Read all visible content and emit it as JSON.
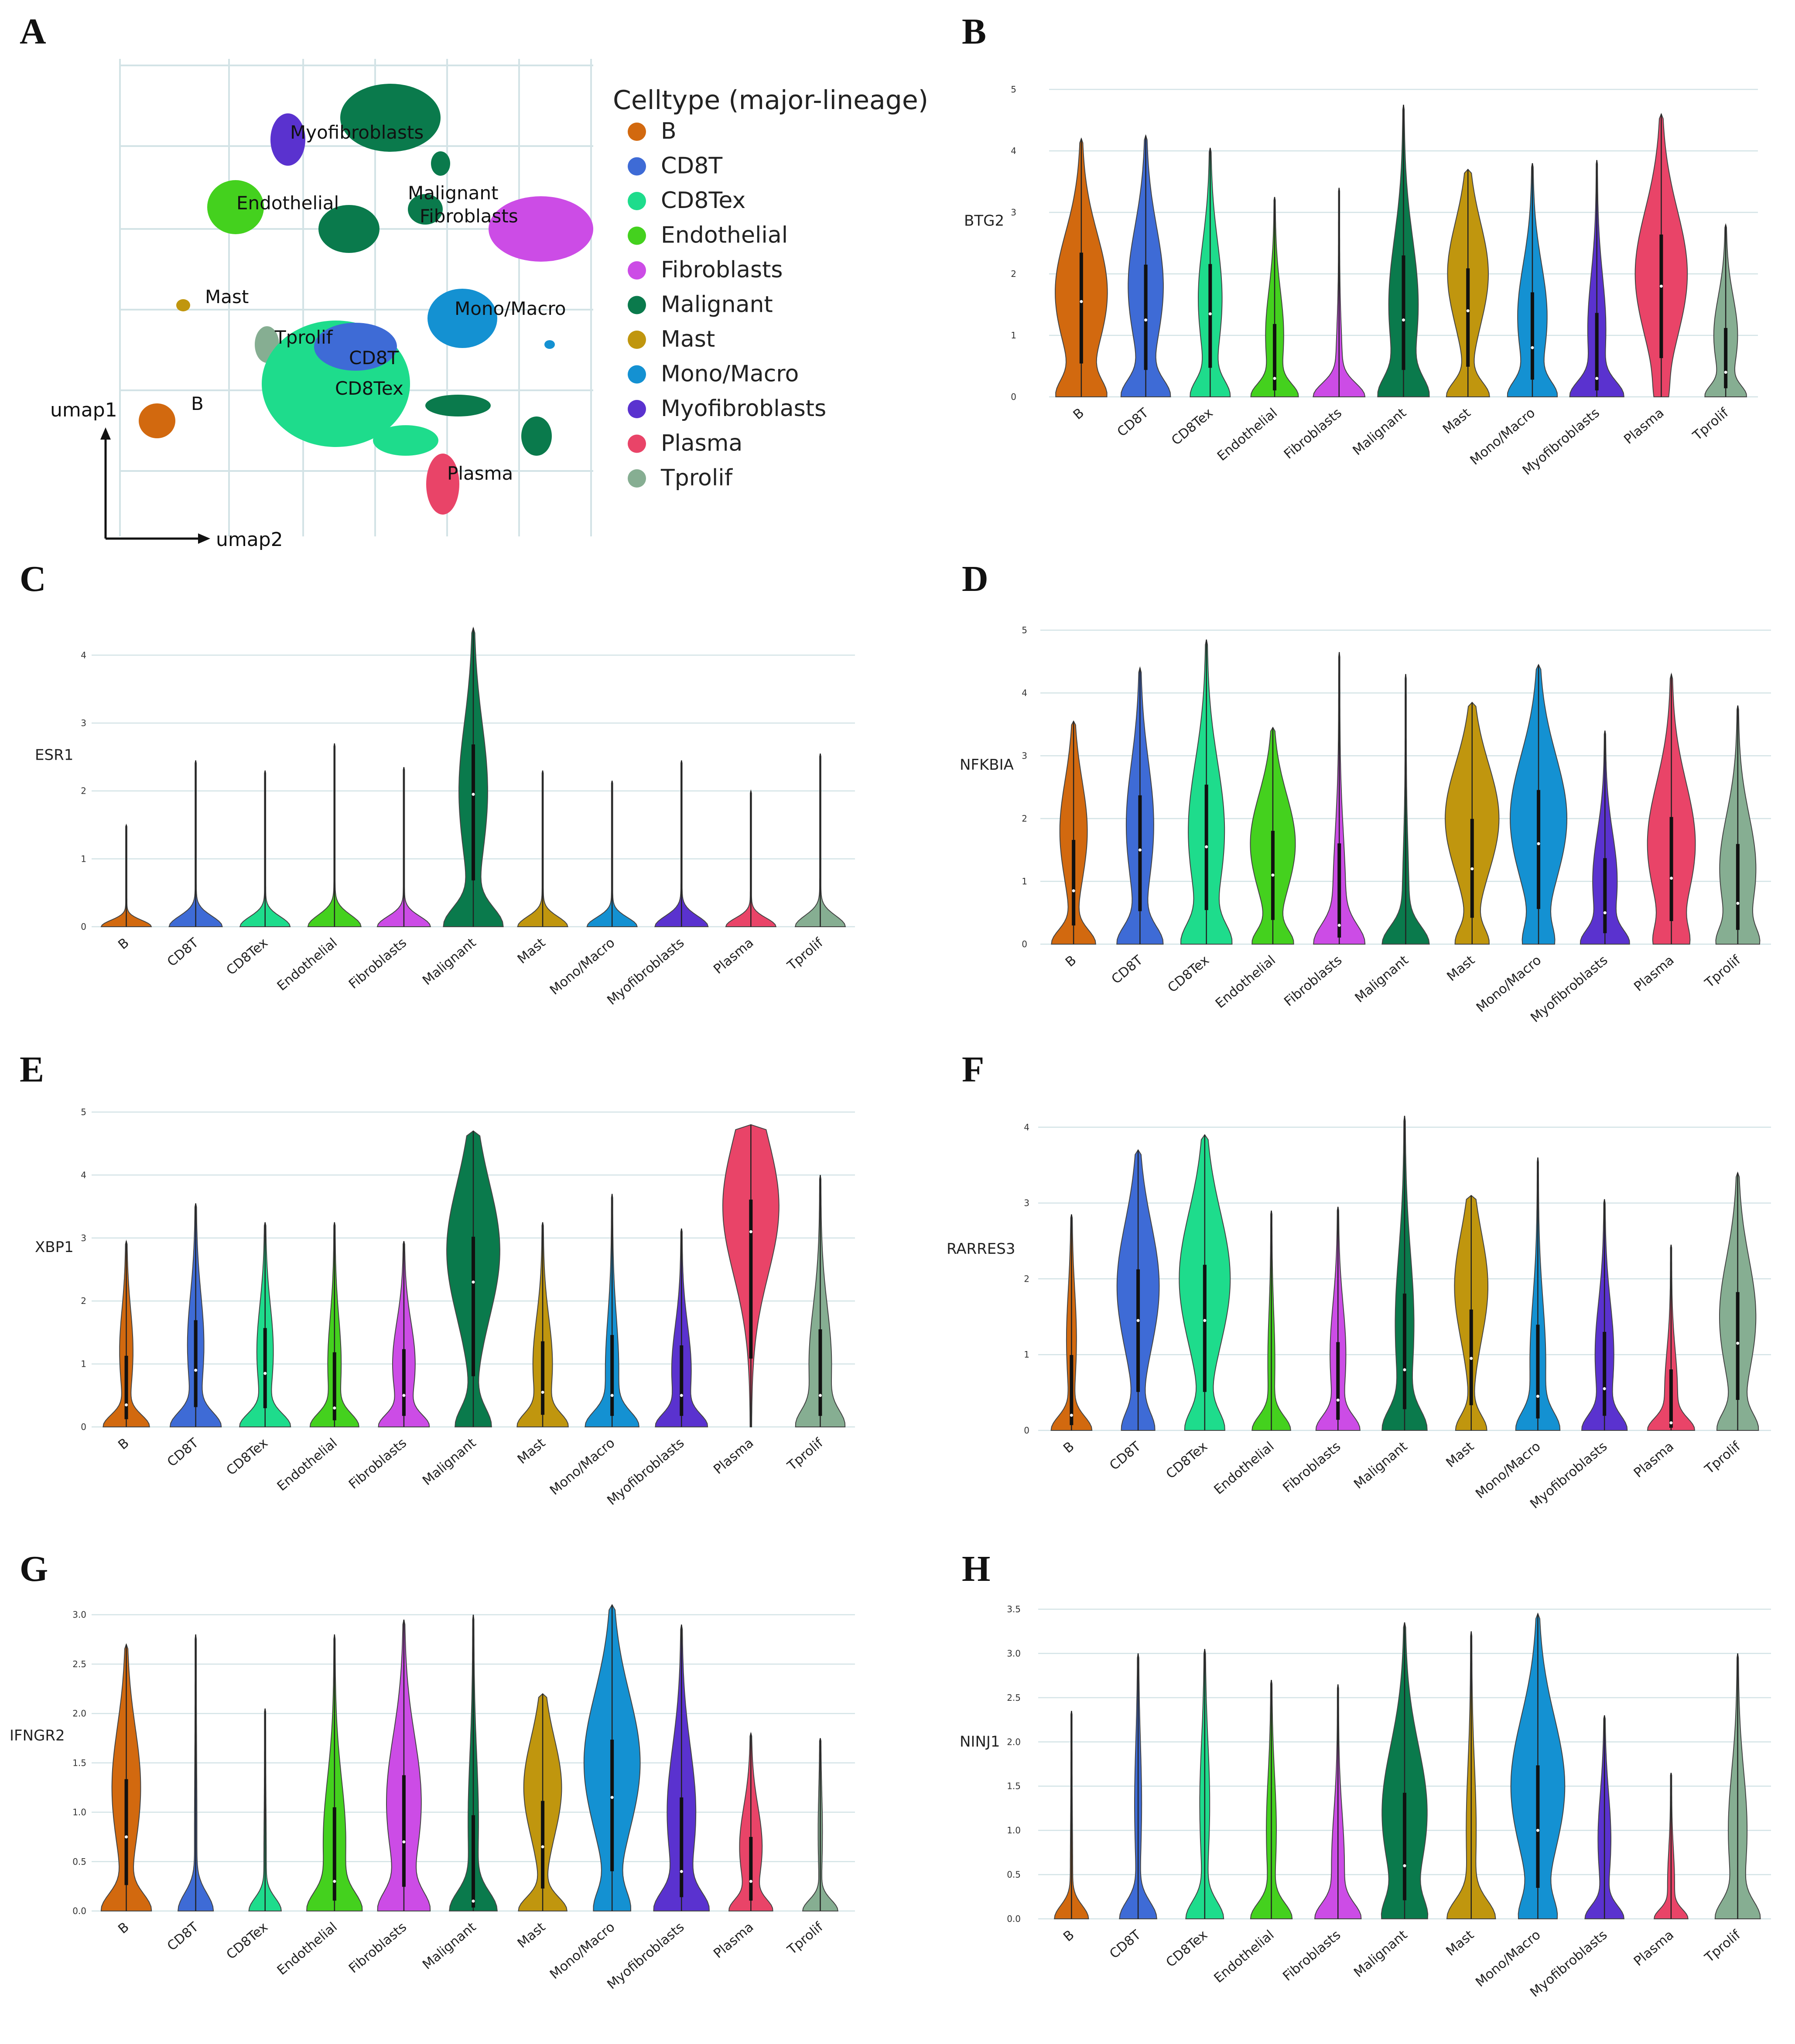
{
  "colors": {
    "B": "#D2690F",
    "CD8T": "#3E6BD6",
    "CD8Tex": "#1EDC8C",
    "Endothelial": "#44D11E",
    "Fibroblasts": "#CC4CE6",
    "Malignant": "#0A7A4C",
    "Mast": "#C0960E",
    "Mono/Macro": "#1491D2",
    "Myofibroblasts": "#5A32CF",
    "Plasma": "#E94468",
    "Tprolif": "#86AE92",
    "grid": "#D3E3E6",
    "outline": "#444444"
  },
  "umap": {
    "letter": "A",
    "legend_title": "Celltype (major-lineage)",
    "categories": [
      "B",
      "CD8T",
      "CD8Tex",
      "Endothelial",
      "Fibroblasts",
      "Malignant",
      "Mast",
      "Mono/Macro",
      "Myofibroblasts",
      "Plasma",
      "Tprolif"
    ],
    "cluster_labels": [
      "Myofibroblasts",
      "Endothelial",
      "Malignant",
      "Fibroblasts",
      "Mast",
      "Mono/Macro",
      "Tprolif",
      "CD8T",
      "CD8Tex",
      "B",
      "Plasma"
    ],
    "x_axis": "umap2",
    "y_axis": "umap1"
  },
  "chart_data": [
    {
      "type": "violin",
      "letter": "B",
      "gene": "BTG2",
      "categories": [
        "B",
        "CD8T",
        "CD8Tex",
        "Endothelial",
        "Fibroblasts",
        "Malignant",
        "Mast",
        "Mono/Macro",
        "Myofibroblasts",
        "Plasma",
        "Tprolif"
      ],
      "ylim": [
        0,
        5
      ],
      "yticks": [
        "0",
        "1",
        "2",
        "3",
        "4",
        "5"
      ],
      "max": [
        4.2,
        4.25,
        4.05,
        3.25,
        3.4,
        4.75,
        3.7,
        3.8,
        3.85,
        4.6,
        2.8
      ],
      "mode": [
        1.7,
        1.8,
        1.6,
        1.0,
        0.3,
        1.5,
        2.0,
        1.3,
        1.1,
        2.0,
        1.0
      ],
      "width": [
        0.9,
        0.6,
        0.4,
        0.3,
        0.1,
        0.5,
        0.7,
        0.5,
        0.3,
        0.9,
        0.4
      ],
      "zero": [
        0.7,
        0.75,
        0.6,
        0.7,
        0.8,
        0.7,
        0.7,
        0.7,
        0.8,
        0.1,
        0.6
      ],
      "median": [
        1.55,
        1.25,
        1.35,
        0.3,
        0.0,
        1.25,
        1.4,
        0.8,
        0.3,
        1.8,
        0.4
      ]
    },
    {
      "type": "violin",
      "letter": "C",
      "gene": "ESR1",
      "categories": [
        "B",
        "CD8T",
        "CD8Tex",
        "Endothelial",
        "Fibroblasts",
        "Malignant",
        "Mast",
        "Mono/Macro",
        "Myofibroblasts",
        "Plasma",
        "Tprolif"
      ],
      "ylim": [
        0,
        4.4
      ],
      "yticks": [
        "0",
        "1",
        "2",
        "3",
        "4"
      ],
      "max": [
        1.5,
        2.45,
        2.3,
        2.7,
        2.35,
        4.4,
        2.3,
        2.15,
        2.45,
        2.0,
        2.55
      ],
      "mode": [
        0,
        0,
        0,
        0,
        0,
        2.0,
        0,
        0,
        0,
        0,
        0
      ],
      "width": [
        0,
        0,
        0,
        0,
        0,
        0.45,
        0,
        0,
        0,
        0,
        0
      ],
      "zero": [
        0.8,
        0.85,
        0.8,
        0.85,
        0.85,
        0.9,
        0.8,
        0.8,
        0.85,
        0.8,
        0.8
      ],
      "median": [
        0,
        0,
        0,
        0,
        0,
        1.95,
        0,
        0,
        0,
        0,
        0
      ]
    },
    {
      "type": "violin",
      "letter": "D",
      "gene": "NFKBIA",
      "categories": [
        "B",
        "CD8T",
        "CD8Tex",
        "Endothelial",
        "Fibroblasts",
        "Malignant",
        "Mast",
        "Mono/Macro",
        "Myofibroblasts",
        "Plasma",
        "Tprolif"
      ],
      "ylim": [
        0,
        5
      ],
      "yticks": [
        "0",
        "1",
        "2",
        "3",
        "4",
        "5"
      ],
      "max": [
        3.55,
        4.4,
        4.85,
        3.45,
        4.65,
        4.3,
        3.85,
        4.45,
        3.4,
        4.3,
        3.8
      ],
      "mode": [
        1.8,
        1.9,
        1.8,
        1.6,
        0.7,
        0.5,
        2.0,
        2.0,
        1.0,
        1.6,
        1.2
      ],
      "width": [
        0.45,
        0.45,
        0.6,
        0.75,
        0.2,
        0.1,
        0.9,
        0.95,
        0.4,
        0.8,
        0.6
      ],
      "zero": [
        0.7,
        0.7,
        0.7,
        0.6,
        0.7,
        0.7,
        0.5,
        0.4,
        0.65,
        0.4,
        0.5
      ],
      "median": [
        0.85,
        1.5,
        1.55,
        1.1,
        0.3,
        0.0,
        1.2,
        1.6,
        0.5,
        1.05,
        0.65
      ]
    },
    {
      "type": "violin",
      "letter": "E",
      "gene": "XBP1",
      "categories": [
        "B",
        "CD8T",
        "CD8Tex",
        "Endothelial",
        "Fibroblasts",
        "Malignant",
        "Mast",
        "Mono/Macro",
        "Myofibroblasts",
        "Plasma",
        "Tprolif"
      ],
      "ylim": [
        0,
        5
      ],
      "yticks": [
        "0",
        "1",
        "2",
        "3",
        "4",
        "5"
      ],
      "max": [
        2.95,
        3.55,
        3.25,
        3.25,
        2.95,
        4.7,
        3.25,
        3.7,
        3.15,
        4.8,
        4.0
      ],
      "mode": [
        1.2,
        1.3,
        1.2,
        1.0,
        1.0,
        2.8,
        1.0,
        0.9,
        0.9,
        3.5,
        1.0
      ],
      "width": [
        0.2,
        0.25,
        0.25,
        0.2,
        0.35,
        0.85,
        0.3,
        0.2,
        0.3,
        0.9,
        0.35
      ],
      "zero": [
        0.7,
        0.75,
        0.75,
        0.7,
        0.7,
        0.55,
        0.7,
        0.75,
        0.7,
        0.0,
        0.6
      ],
      "median": [
        0.35,
        0.9,
        0.85,
        0.3,
        0.5,
        2.3,
        0.55,
        0.5,
        0.5,
        3.1,
        0.5
      ]
    },
    {
      "type": "violin",
      "letter": "F",
      "gene": "RARRES3",
      "categories": [
        "B",
        "CD8T",
        "CD8Tex",
        "Endothelial",
        "Fibroblasts",
        "Malignant",
        "Mast",
        "Mono/Macro",
        "Myofibroblasts",
        "Plasma",
        "Tprolif"
      ],
      "ylim": [
        0,
        4.2
      ],
      "yticks": [
        "0",
        "1",
        "2",
        "3",
        "4"
      ],
      "max": [
        2.85,
        3.7,
        3.9,
        2.9,
        2.95,
        4.15,
        3.1,
        3.6,
        3.05,
        2.45,
        3.4
      ],
      "mode": [
        1.2,
        1.9,
        2.0,
        0.9,
        1.0,
        1.4,
        1.9,
        0.9,
        1.0,
        0.5,
        1.5
      ],
      "width": [
        0.15,
        0.7,
        0.85,
        0.1,
        0.25,
        0.3,
        0.55,
        0.25,
        0.3,
        0.2,
        0.6
      ],
      "zero": [
        0.65,
        0.5,
        0.6,
        0.6,
        0.65,
        0.65,
        0.5,
        0.6,
        0.65,
        0.65,
        0.6
      ],
      "median": [
        0.2,
        1.45,
        1.45,
        0.0,
        0.4,
        0.8,
        0.95,
        0.45,
        0.55,
        0.1,
        1.15
      ]
    },
    {
      "type": "violin",
      "letter": "G",
      "gene": "IFNGR2",
      "categories": [
        "B",
        "CD8T",
        "CD8Tex",
        "Endothelial",
        "Fibroblasts",
        "Malignant",
        "Mast",
        "Mono/Macro",
        "Myofibroblasts",
        "Plasma",
        "Tprolif"
      ],
      "ylim": [
        0,
        3.1
      ],
      "yticks": [
        "0.0",
        "0.5",
        "1.0",
        "1.5",
        "2.0",
        "2.5",
        "3.0"
      ],
      "max": [
        2.7,
        2.8,
        2.05,
        2.8,
        2.95,
        3.0,
        2.2,
        3.1,
        2.9,
        1.8,
        1.75
      ],
      "mode": [
        1.25,
        0.8,
        0.5,
        0.7,
        1.1,
        0.9,
        1.25,
        1.5,
        1.0,
        0.65,
        0.8
      ],
      "width": [
        0.45,
        0.02,
        0.02,
        0.35,
        0.55,
        0.15,
        0.6,
        0.9,
        0.45,
        0.35,
        0.05
      ],
      "zero": [
        0.75,
        0.55,
        0.5,
        0.7,
        0.7,
        0.7,
        0.75,
        0.5,
        0.75,
        0.6,
        0.55
      ],
      "median": [
        0.75,
        0.0,
        0.0,
        0.3,
        0.7,
        0.1,
        0.65,
        1.15,
        0.4,
        0.3,
        0.0
      ]
    },
    {
      "type": "violin",
      "letter": "H",
      "gene": "NINJ1",
      "categories": [
        "B",
        "CD8T",
        "CD8Tex",
        "Endothelial",
        "Fibroblasts",
        "Malignant",
        "Mast",
        "Mono/Macro",
        "Myofibroblasts",
        "Plasma",
        "Tprolif"
      ],
      "ylim": [
        0,
        3.5
      ],
      "yticks": [
        "0.0",
        "0.5",
        "1.0",
        "1.5",
        "2.0",
        "2.5",
        "3.0",
        "3.5"
      ],
      "max": [
        2.35,
        3.0,
        3.05,
        2.7,
        2.65,
        3.35,
        3.25,
        3.45,
        2.3,
        1.65,
        3.0
      ],
      "mode": [
        0.5,
        1.3,
        1.3,
        1.0,
        0.6,
        1.2,
        1.0,
        1.5,
        0.9,
        0.4,
        1.0
      ],
      "width": [
        0.02,
        0.1,
        0.15,
        0.15,
        0.2,
        0.75,
        0.15,
        0.9,
        0.2,
        0.1,
        0.3
      ],
      "zero": [
        0.55,
        0.6,
        0.6,
        0.65,
        0.65,
        0.55,
        0.75,
        0.5,
        0.6,
        0.5,
        0.65
      ],
      "median": [
        0.0,
        0.0,
        0.0,
        0.0,
        0.0,
        0.6,
        0.0,
        1.0,
        0.0,
        0.0,
        0.0
      ]
    }
  ]
}
